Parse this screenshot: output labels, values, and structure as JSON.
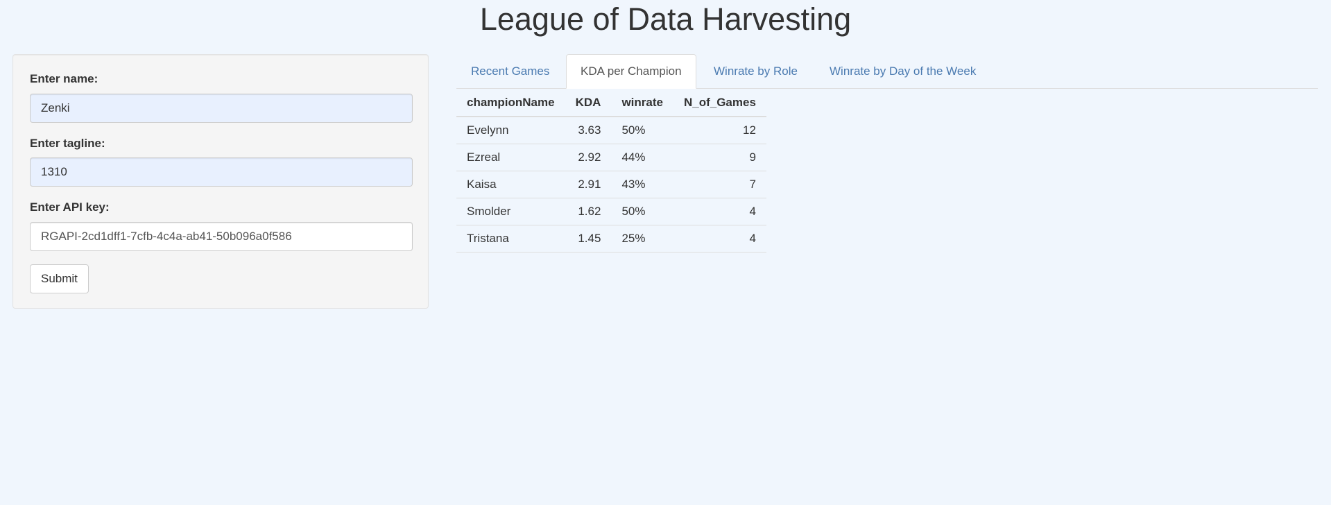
{
  "app": {
    "title": "League of Data Harvesting"
  },
  "sidebar": {
    "name_label": "Enter name:",
    "name_value": "Zenki",
    "tagline_label": "Enter tagline:",
    "tagline_value": "1310",
    "api_label": "Enter API key:",
    "api_value": "RGAPI-2cd1dff1-7cfb-4c4a-ab41-50b096a0f586",
    "submit_label": "Submit"
  },
  "tabs": [
    {
      "label": "Recent Games",
      "active": false
    },
    {
      "label": "KDA per Champion",
      "active": true
    },
    {
      "label": "Winrate by Role",
      "active": false
    },
    {
      "label": "Winrate by Day of the Week",
      "active": false
    }
  ],
  "table": {
    "columns": [
      "championName",
      "KDA",
      "winrate",
      "N_of_Games"
    ],
    "rows": [
      [
        "Evelynn",
        "3.63",
        "50%",
        "12"
      ],
      [
        "Ezreal",
        "2.92",
        "44%",
        "9"
      ],
      [
        "Kaisa",
        "2.91",
        "43%",
        "7"
      ],
      [
        "Smolder",
        "1.62",
        "50%",
        "4"
      ],
      [
        "Tristana",
        "1.45",
        "25%",
        "4"
      ]
    ]
  },
  "colors": {
    "page_background": "#f0f6fd",
    "link": "#4a7ab0",
    "autofill_background": "#e8f0fe"
  }
}
